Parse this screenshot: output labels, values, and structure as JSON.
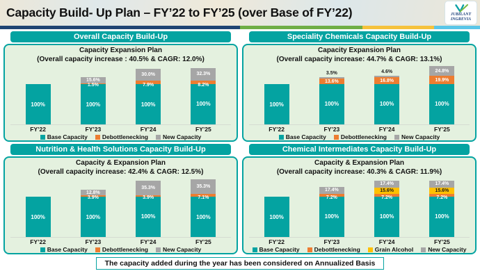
{
  "header": {
    "title": "Capacity Build- Up Plan – FY’22 to FY’25 (over Base of FY’22)",
    "logo": {
      "line1": "JUBILANT",
      "line2": "INGREVIA"
    }
  },
  "accent_strip": [
    "#1f4473",
    "#6fae46",
    "#f5c23c",
    "#5bc6e8"
  ],
  "colors": {
    "teal": "#04a3a1",
    "orange": "#ed7d31",
    "yellow": "#ffc000",
    "gray": "#a6a6a6",
    "panel_bg": "#e4f1df"
  },
  "footer": {
    "note": "The capacity added during the year has been considered on Annualized Basis"
  },
  "chart_data": [
    {
      "type": "bar",
      "stacked": true,
      "id": "overall",
      "panel_title": "Overall Capacity Build-Up",
      "title": "Capacity Expansion Plan",
      "subtitle": "(Overall capacity increase : 40.5% & CAGR: 12.0%)",
      "categories": [
        "FY’22",
        "FY’23",
        "FY’24",
        "FY’25"
      ],
      "series": [
        {
          "name": "Base Capacity",
          "color_key": "teal",
          "values": [
            100,
            100,
            100,
            100
          ],
          "labels": [
            "100%",
            "100%",
            "100%",
            "100%"
          ]
        },
        {
          "name": "Debottlenecking",
          "color_key": "orange",
          "values": [
            null,
            1.5,
            7.9,
            8.2
          ],
          "labels": [
            null,
            "1.5%",
            "7.9%",
            "8.2%"
          ]
        },
        {
          "name": "New Capacity",
          "color_key": "gray",
          "values": [
            null,
            15.6,
            30.0,
            32.3
          ],
          "labels": [
            null,
            "15.6%",
            "30.0%",
            "32.3%"
          ]
        }
      ]
    },
    {
      "type": "bar",
      "stacked": true,
      "id": "speciality-chemicals",
      "panel_title": "Speciality Chemicals Capacity Build-Up",
      "title": "Capacity Expansion Plan",
      "subtitle": "(Overall capacity increase: 44.7% & CAGR: 13.1%)",
      "categories": [
        "FY’22",
        "FY’23",
        "FY’24",
        "FY’25"
      ],
      "series": [
        {
          "name": "Base Capacity",
          "color_key": "teal",
          "values": [
            100,
            100,
            100,
            100
          ],
          "labels": [
            "100%",
            "100%",
            "100%",
            "100%"
          ]
        },
        {
          "name": "Debottlenecking",
          "color_key": "orange",
          "values": [
            null,
            13.6,
            16.8,
            19.9
          ],
          "labels": [
            null,
            "13.6%",
            "16.8%",
            "19.9%"
          ]
        },
        {
          "name": "New Capacity",
          "color_key": "gray",
          "values": [
            null,
            3.5,
            4.6,
            24.8
          ],
          "labels": [
            null,
            "3.5%",
            "4.6%",
            "24.8%"
          ]
        }
      ]
    },
    {
      "type": "bar",
      "stacked": true,
      "id": "nutrition-health-solutions",
      "panel_title": "Nutrition & Health Solutions Capacity Build-Up",
      "title": "Capacity & Expansion Plan",
      "subtitle": "(Overall capacity increase: 42.4% & CAGR: 12.5%)",
      "categories": [
        "FY’22",
        "FY’23",
        "FY’24",
        "FY’25"
      ],
      "series": [
        {
          "name": "Base Capacity",
          "color_key": "teal",
          "values": [
            100,
            100,
            100,
            100
          ],
          "labels": [
            "100%",
            "100%",
            "100%",
            "100%"
          ]
        },
        {
          "name": "Debottlenecking",
          "color_key": "orange",
          "values": [
            null,
            3.9,
            3.9,
            7.1
          ],
          "labels": [
            null,
            "3.9%",
            "3.9%",
            "7.1%"
          ]
        },
        {
          "name": "New Capacity",
          "color_key": "gray",
          "values": [
            null,
            12.8,
            35.3,
            35.3
          ],
          "labels": [
            null,
            "12.8%",
            "35.3%",
            "35.3%"
          ]
        }
      ]
    },
    {
      "type": "bar",
      "stacked": true,
      "id": "chemical-intermediates",
      "panel_title": "Chemical Intermediates Capacity Build-Up",
      "title": "Capacity & Expansion Plan",
      "subtitle": "(Overall capacity increase: 40.3% & CAGR: 11.9%)",
      "categories": [
        "FY’22",
        "FY’23",
        "FY’24",
        "FY’25"
      ],
      "series": [
        {
          "name": "Base Capacity",
          "color_key": "teal",
          "values": [
            100,
            100,
            100,
            100
          ],
          "labels": [
            "100%",
            "100%",
            "100%",
            "100%"
          ]
        },
        {
          "name": "Debottlenecking",
          "color_key": "orange",
          "values": [
            null,
            7.2,
            7.2,
            7.2
          ],
          "labels": [
            null,
            "7.2%",
            "7.2%",
            "7.2%"
          ]
        },
        {
          "name": "Grain Alcohol",
          "color_key": "yellow",
          "values": [
            null,
            null,
            15.6,
            15.6
          ],
          "labels": [
            null,
            null,
            "15.6%",
            "15.6%"
          ]
        },
        {
          "name": "New Capacity",
          "color_key": "gray",
          "values": [
            null,
            17.4,
            17.4,
            17.4
          ],
          "labels": [
            null,
            "17.4%",
            "17.4%",
            "17.4%"
          ]
        }
      ]
    }
  ]
}
